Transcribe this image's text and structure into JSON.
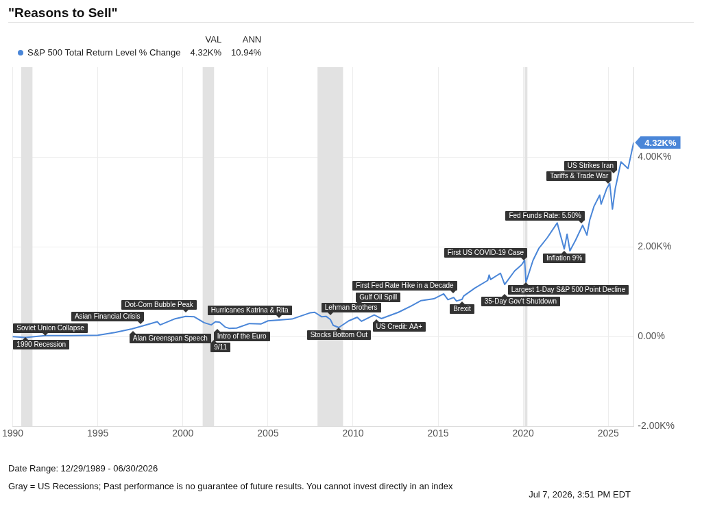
{
  "chart_data": {
    "type": "line",
    "title": "\"Reasons to Sell\"",
    "legend": "top left",
    "x": [
      "1989-12-29",
      "1990-10",
      "1991-12",
      "1993-06",
      "1995-01",
      "1996-01",
      "1997-01",
      "1997-08",
      "1998-07",
      "1998-09",
      "1999-07",
      "2000-03",
      "2000-09",
      "2001-04",
      "2001-09",
      "2001-12",
      "2002-03",
      "2002-07",
      "2002-10",
      "2003-03",
      "2003-12",
      "2004-08",
      "2005-01",
      "2005-09",
      "2006-06",
      "2007-07",
      "2007-10",
      "2008-03",
      "2008-06",
      "2008-09",
      "2008-11",
      "2009-03",
      "2009-10",
      "2010-04",
      "2010-07",
      "2011-04",
      "2011-09",
      "2012-09",
      "2013-06",
      "2014-01",
      "2014-10",
      "2015-05",
      "2015-08",
      "2015-12",
      "2016-02",
      "2016-06",
      "2016-07",
      "2017-03",
      "2017-12",
      "2018-01",
      "2018-02",
      "2018-09",
      "2018-12",
      "2019-07",
      "2019-12",
      "2020-02",
      "2020-03",
      "2020-08",
      "2020-12",
      "2021-06",
      "2022-01",
      "2022-03",
      "2022-06",
      "2022-08",
      "2022-10",
      "2023-02",
      "2023-07",
      "2023-10",
      "2023-12",
      "2024-03",
      "2024-07",
      "2024-08",
      "2024-12",
      "2025-02",
      "2025-04",
      "2025-06",
      "2025-10",
      "2026-03",
      "2026-06-30"
    ],
    "series": [
      {
        "name": "S&P 500 Total Return Level % Change",
        "color": "#4a86d8",
        "values": [
          0,
          -20,
          20,
          20,
          30,
          90,
          170,
          230,
          330,
          260,
          390,
          450,
          440,
          310,
          260,
          330,
          320,
          210,
          180,
          190,
          290,
          280,
          350,
          370,
          390,
          530,
          540,
          440,
          450,
          380,
          250,
          200,
          350,
          430,
          340,
          480,
          400,
          540,
          680,
          800,
          840,
          950,
          820,
          870,
          790,
          830,
          900,
          1080,
          1250,
          1370,
          1270,
          1410,
          1160,
          1460,
          1600,
          1700,
          1210,
          1700,
          1960,
          2200,
          2530,
          2300,
          1950,
          2280,
          1910,
          2150,
          2480,
          2260,
          2600,
          2900,
          3150,
          2950,
          3300,
          3410,
          2840,
          3300,
          3890,
          3740,
          4320
        ],
        "value_labels": [
          null,
          null,
          null,
          null,
          null,
          null,
          null,
          null,
          null,
          null,
          null,
          null,
          null,
          null,
          null,
          null,
          null,
          null,
          null,
          null,
          null,
          null,
          null,
          null,
          null,
          null,
          null,
          null,
          null,
          null,
          null,
          null,
          null,
          null,
          null,
          null,
          null,
          null,
          null,
          null,
          null,
          null,
          null,
          null,
          null,
          null,
          null,
          null,
          null,
          null,
          null,
          null,
          null,
          null,
          null,
          null,
          null,
          null,
          null,
          null,
          null,
          null,
          null,
          null,
          null,
          null,
          null,
          null,
          null,
          null,
          null,
          null,
          null,
          null,
          null,
          null,
          null,
          null,
          "4.32K%"
        ]
      }
    ],
    "xlim": [
      "1989-12-29",
      "2026-06-30"
    ],
    "xticks": [
      {
        "value": "1990-01-01",
        "label": "1990"
      },
      {
        "value": "1995-01-01",
        "label": "1995"
      },
      {
        "value": "2000-01-01",
        "label": "2000"
      },
      {
        "value": "2005-01-01",
        "label": "2005"
      },
      {
        "value": "2010-01-01",
        "label": "2010"
      },
      {
        "value": "2015-01-01",
        "label": "2015"
      },
      {
        "value": "2020-01-01",
        "label": "2020"
      },
      {
        "value": "2025-01-01",
        "label": "2025"
      }
    ],
    "ylim": [
      -2000,
      6000
    ],
    "yticks": [
      {
        "value": -2000,
        "label": "-2.00K%"
      },
      {
        "value": 0,
        "label": "0.00%"
      },
      {
        "value": 2000,
        "label": "2.00K%"
      },
      {
        "value": 4000,
        "label": "4.00K%"
      }
    ],
    "grid": true,
    "bands": [
      {
        "axis": "x",
        "from": "1990-07",
        "to": "1991-03",
        "color": "#e2e2e2"
      },
      {
        "axis": "x",
        "from": "2001-03",
        "to": "2001-11",
        "color": "#e2e2e2"
      },
      {
        "axis": "x",
        "from": "2007-12",
        "to": "2009-06",
        "color": "#e2e2e2"
      },
      {
        "axis": "x",
        "from": "2020-02",
        "to": "2020-04",
        "color": "#e2e2e2"
      }
    ],
    "annotations": [
      "VAL",
      "ANN",
      "4.32K%",
      "10.94%",
      "Date Range: 12/29/1989 - 06/30/2026",
      "Gray = US Recessions; Past performance is no guarantee of future results. You cannot invest directly in an index",
      "Jul 7, 2026, 3:51 PM EDT",
      {
        "text": "1990 Recession",
        "x": "1990-10",
        "y": -20
      },
      {
        "text": "Soviet Union Collapse",
        "x": "1991-12",
        "y": 20
      },
      {
        "text": "Alan Greenspan Speech",
        "x": "1997-01",
        "y": 170
      },
      {
        "text": "Asian Financial Crisis",
        "x": "1997-08",
        "y": 230
      },
      {
        "text": "Dot-Com Bubble Peak",
        "x": "2000-03",
        "y": 450
      },
      {
        "text": "9/11",
        "x": "2001-09",
        "y": 260
      },
      {
        "text": "Intro of the Euro",
        "x": "2001-12",
        "y": 330
      },
      {
        "text": "Hurricanes Katrina & Rita",
        "x": "2005-09",
        "y": 370
      },
      {
        "text": "Lehman Brothers",
        "x": "2008-09",
        "y": 380
      },
      {
        "text": "Stocks Bottom Out",
        "x": "2009-03",
        "y": 200
      },
      {
        "text": "Gulf Oil Spill",
        "x": "2010-04",
        "y": 430
      },
      {
        "text": "US Credit: AA+",
        "x": "2011-04",
        "y": 480
      },
      {
        "text": "First Fed Rate Hike in a Decade",
        "x": "2015-12",
        "y": 870
      },
      {
        "text": "Brexit",
        "x": "2016-06",
        "y": 830
      },
      {
        "text": "35-Day Gov't Shutdown",
        "x": "2018-12",
        "y": 1160
      },
      {
        "text": "First US COVID-19 Case",
        "x": "2020-02",
        "y": 1700
      },
      {
        "text": "Largest 1-Day S&P 500 Point Decline",
        "x": "2020-03",
        "y": 1210
      },
      {
        "text": "Inflation 9%",
        "x": "2022-06",
        "y": 1950
      },
      {
        "text": "Fed Funds Rate: 5.50%",
        "x": "2023-07",
        "y": 2480
      },
      {
        "text": "Tariffs & Trade War",
        "x": "2025-02",
        "y": 3410
      },
      {
        "text": "US Strikes Iran",
        "x": "2025-06",
        "y": 3300
      }
    ]
  }
}
